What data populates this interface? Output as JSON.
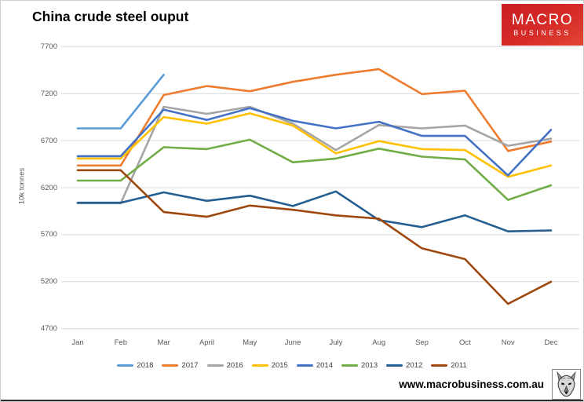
{
  "header": {
    "title": "China crude steel ouput"
  },
  "logo": {
    "line1": "MACRO",
    "line2": "BUSINESS",
    "bg_color": "#d62b28"
  },
  "footer": {
    "url": "www.macrobusiness.com.au",
    "wolf_icon": "wolf-head-sketch"
  },
  "chart_data": {
    "type": "line",
    "title": "China crude steel ouput",
    "xlabel": "",
    "ylabel": "10k tonnes",
    "ylim": [
      4700,
      7700
    ],
    "yticks": [
      7700,
      7200,
      6700,
      6200,
      5700,
      5200,
      4700
    ],
    "grid": true,
    "legend_position": "bottom",
    "categories": [
      "Jan",
      "Feb",
      "Mar",
      "April",
      "May",
      "June",
      "July",
      "Aug",
      "Sep",
      "Oct",
      "Nov",
      "Dec"
    ],
    "series": [
      {
        "name": "2018",
        "color": "#5B9BD5",
        "values": [
          6830,
          6830,
          7400,
          null,
          null,
          null,
          null,
          null,
          null,
          null,
          null,
          null
        ]
      },
      {
        "name": "2017",
        "color": "#ED7D31",
        "values": [
          6435,
          6435,
          7185,
          7280,
          7225,
          7325,
          7400,
          7460,
          7195,
          7230,
          6590,
          6690
        ]
      },
      {
        "name": "2016",
        "color": "#A5A5A5",
        "values": [
          6035,
          6035,
          7060,
          6985,
          7060,
          6880,
          6600,
          6865,
          6830,
          6860,
          6645,
          6720
        ]
      },
      {
        "name": "2015",
        "color": "#FFC000",
        "values": [
          6510,
          6510,
          6950,
          6880,
          6990,
          6860,
          6565,
          6695,
          6610,
          6600,
          6315,
          6435
        ]
      },
      {
        "name": "2014",
        "color": "#4472C4",
        "values": [
          6535,
          6535,
          7030,
          6920,
          7045,
          6910,
          6830,
          6900,
          6750,
          6750,
          6330,
          6815
        ]
      },
      {
        "name": "2013",
        "color": "#70AD47",
        "values": [
          6275,
          6275,
          6630,
          6610,
          6710,
          6470,
          6510,
          6615,
          6530,
          6500,
          6070,
          6225
        ]
      },
      {
        "name": "2012",
        "color": "#255E91",
        "values": [
          6040,
          6040,
          6150,
          6060,
          6115,
          6005,
          6160,
          5855,
          5780,
          5905,
          5735,
          5745
        ]
      },
      {
        "name": "2011",
        "color": "#9E480E",
        "values": [
          6385,
          6385,
          5940,
          5890,
          6010,
          5965,
          5905,
          5870,
          5555,
          5440,
          4965,
          5200
        ]
      }
    ]
  }
}
